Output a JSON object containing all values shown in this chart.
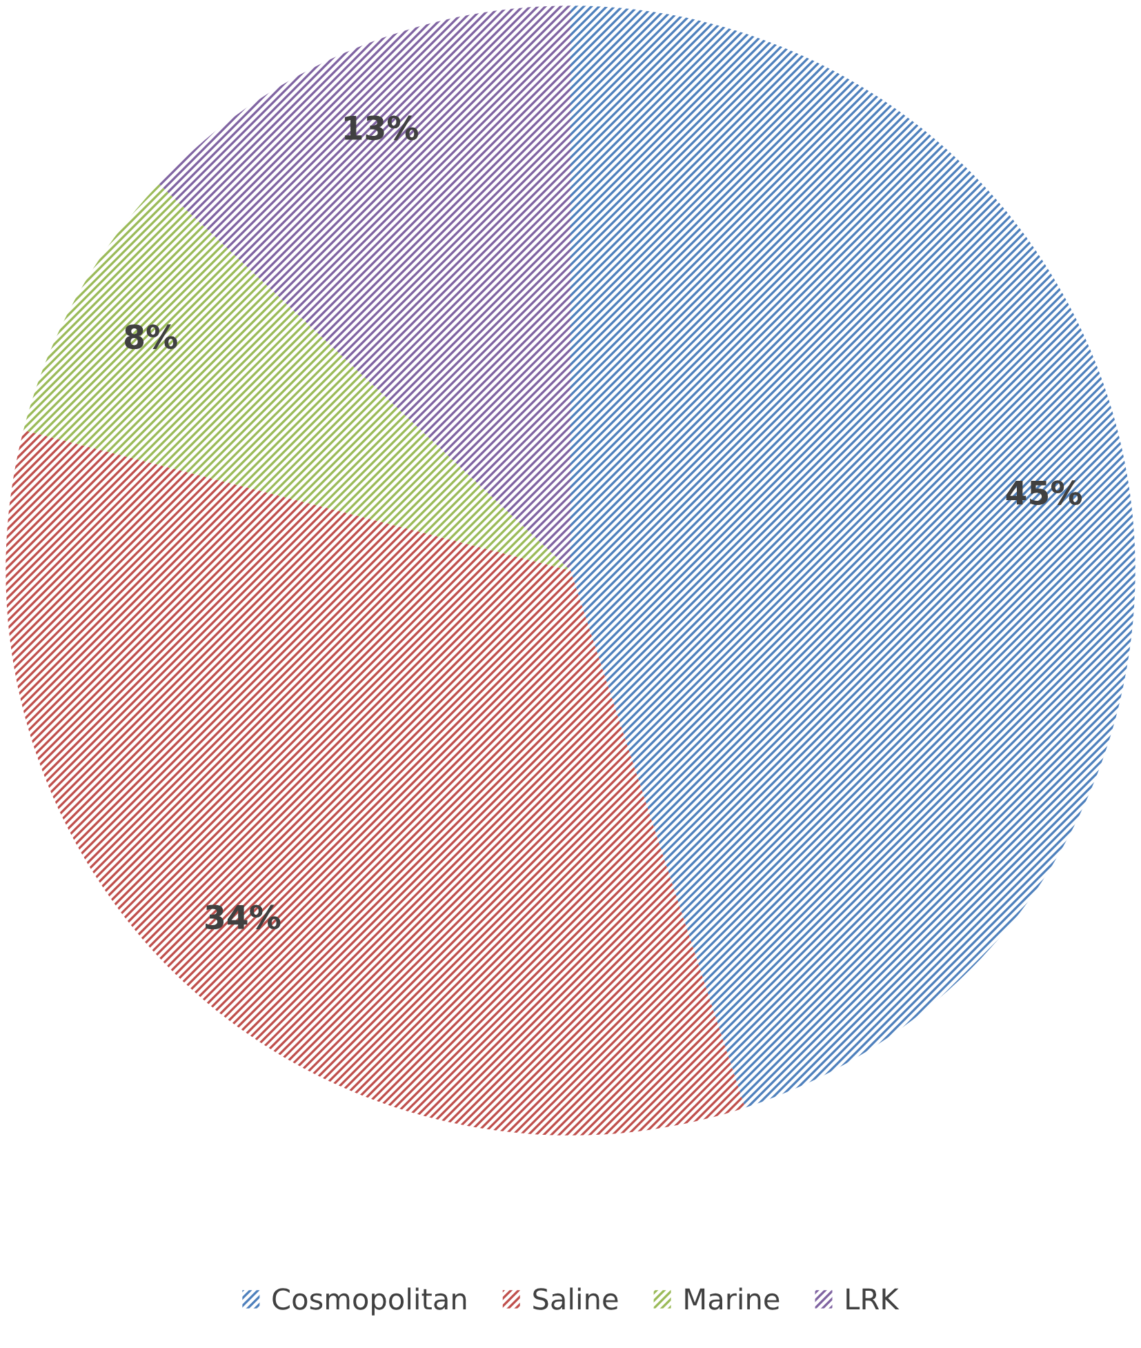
{
  "chart_data": {
    "type": "pie",
    "categories": [
      "Cosmopolitan",
      "Saline",
      "Marine",
      "LRK"
    ],
    "values": [
      45,
      34,
      8,
      13
    ],
    "colors": [
      "#4f81bd",
      "#c0504d",
      "#9bbb59",
      "#8064a2"
    ],
    "value_labels": [
      "45%",
      "34%",
      "8%",
      "13%"
    ],
    "legend": "bottom"
  }
}
